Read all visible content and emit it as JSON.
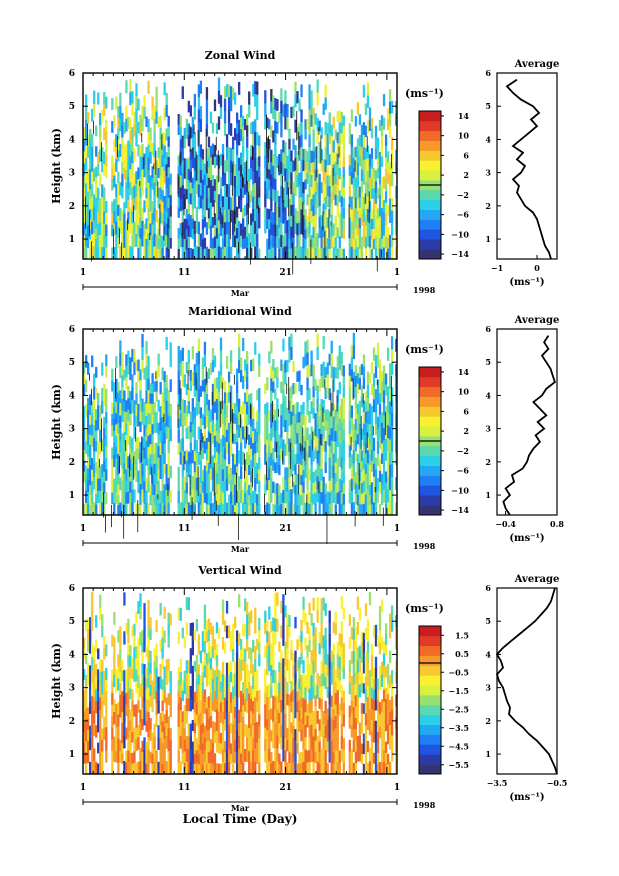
{
  "figure": {
    "xlabel": "Local Time (Day)",
    "profile_title": "Average"
  },
  "chart_data": [
    {
      "type": "heatmap",
      "name": "zonal",
      "title": "Zonal Wind",
      "ylabel": "Height (km)",
      "ylim": [
        0.4,
        6
      ],
      "yticks": [
        "1",
        "2",
        "3",
        "4",
        "5",
        "6"
      ],
      "xticks": [
        "1",
        "11",
        "21",
        "1"
      ],
      "month_label": "Mar",
      "year_label": "1998",
      "colorbar": {
        "unit": "(ms⁻¹)",
        "range": [
          -15,
          15
        ],
        "ticks": [
          "14",
          "10",
          "6",
          "2",
          "−2",
          "−6",
          "−10",
          "−14"
        ],
        "colors": [
          "#333470",
          "#2b3aa8",
          "#1f55e0",
          "#1e80f4",
          "#23a8f4",
          "#2bd0e8",
          "#5ad8b0",
          "#9ae070",
          "#d8f040",
          "#f8f030",
          "#f8c830",
          "#f89828",
          "#f06a28",
          "#e03a28",
          "#c81e20"
        ]
      },
      "profile": {
        "xlim": [
          -1,
          0.5
        ],
        "xticks": [
          "−1",
          "0"
        ],
        "xlabel": "(ms⁻¹)",
        "heights": [
          0.4,
          0.6,
          0.8,
          1.0,
          1.2,
          1.4,
          1.6,
          1.8,
          2.0,
          2.2,
          2.4,
          2.6,
          2.8,
          3.0,
          3.2,
          3.4,
          3.6,
          3.8,
          4.0,
          4.2,
          4.4,
          4.6,
          4.8,
          5.0,
          5.2,
          5.4,
          5.6,
          5.8
        ],
        "values": [
          0.35,
          0.3,
          0.2,
          0.15,
          0.1,
          0.05,
          0.0,
          -0.1,
          -0.3,
          -0.4,
          -0.5,
          -0.45,
          -0.6,
          -0.4,
          -0.3,
          -0.5,
          -0.35,
          -0.6,
          -0.4,
          -0.2,
          0.0,
          -0.15,
          0.05,
          -0.1,
          -0.4,
          -0.6,
          -0.75,
          -0.5
        ]
      }
    },
    {
      "type": "heatmap",
      "name": "meridional",
      "title": "Maridional Wind",
      "ylabel": "Height (km)",
      "ylim": [
        0.4,
        6
      ],
      "yticks": [
        "1",
        "2",
        "3",
        "4",
        "5",
        "6"
      ],
      "xticks": [
        "1",
        "11",
        "21",
        "1"
      ],
      "month_label": "Mar",
      "year_label": "1998",
      "colorbar": {
        "unit": "(ms⁻¹)",
        "range": [
          -15,
          15
        ],
        "ticks": [
          "14",
          "10",
          "6",
          "2",
          "−2",
          "−6",
          "−10",
          "−14"
        ],
        "colors": [
          "#333470",
          "#2b3aa8",
          "#1f55e0",
          "#1e80f4",
          "#23a8f4",
          "#2bd0e8",
          "#5ad8b0",
          "#9ae070",
          "#d8f040",
          "#f8f030",
          "#f8c830",
          "#f89828",
          "#f06a28",
          "#e03a28",
          "#c81e20"
        ]
      },
      "profile": {
        "xlim": [
          -0.6,
          0.8
        ],
        "xticks": [
          "−0.4",
          "0.8"
        ],
        "xlabel": "(ms⁻¹)",
        "heights": [
          0.4,
          0.6,
          0.8,
          1.0,
          1.2,
          1.4,
          1.6,
          1.8,
          2.0,
          2.2,
          2.4,
          2.6,
          2.8,
          3.0,
          3.2,
          3.4,
          3.6,
          3.8,
          4.0,
          4.2,
          4.4,
          4.6,
          4.8,
          5.0,
          5.2,
          5.4,
          5.6,
          5.8
        ],
        "values": [
          -0.3,
          -0.4,
          -0.45,
          -0.3,
          -0.4,
          -0.2,
          -0.25,
          0.0,
          0.1,
          0.15,
          0.25,
          0.4,
          0.3,
          0.5,
          0.35,
          0.55,
          0.4,
          0.25,
          0.45,
          0.55,
          0.75,
          0.7,
          0.65,
          0.55,
          0.45,
          0.6,
          0.5,
          0.6
        ]
      }
    },
    {
      "type": "heatmap",
      "name": "vertical",
      "title": "Vertical Wind",
      "ylabel": "Height (km)",
      "ylim": [
        0.4,
        6
      ],
      "yticks": [
        "1",
        "2",
        "3",
        "4",
        "5",
        "6"
      ],
      "xticks": [
        "1",
        "11",
        "21",
        "1"
      ],
      "month_label": "Mar",
      "year_label": "1998",
      "colorbar": {
        "unit": "(ms⁻¹)",
        "range": [
          -6,
          2
        ],
        "ticks": [
          "1.5",
          "0.5",
          "−0.5",
          "−1.5",
          "−2.5",
          "−3.5",
          "−4.5",
          "−5.5"
        ],
        "colors": [
          "#333470",
          "#2b3aa8",
          "#1f55e0",
          "#1e80f4",
          "#23a8f4",
          "#2bd0e8",
          "#5ad8b0",
          "#9ae070",
          "#d8f040",
          "#f8f030",
          "#f8c830",
          "#f89828",
          "#f06a28",
          "#e03a28",
          "#c81e20"
        ]
      },
      "profile": {
        "xlim": [
          -3.5,
          -0.5
        ],
        "xticks": [
          "−3.5",
          "−0.5"
        ],
        "xlabel": "(ms⁻¹)",
        "heights": [
          0.4,
          0.6,
          0.8,
          1.0,
          1.2,
          1.4,
          1.6,
          1.8,
          2.0,
          2.2,
          2.4,
          2.6,
          2.8,
          3.0,
          3.2,
          3.4,
          3.6,
          3.8,
          4.0,
          4.2,
          4.4,
          4.6,
          4.8,
          5.0,
          5.2,
          5.4,
          5.6,
          5.8,
          6.0
        ],
        "values": [
          -0.5,
          -0.6,
          -0.75,
          -0.9,
          -1.2,
          -1.5,
          -1.9,
          -2.2,
          -2.6,
          -2.9,
          -2.85,
          -3.0,
          -3.1,
          -3.2,
          -3.4,
          -3.5,
          -3.2,
          -3.3,
          -3.5,
          -3.2,
          -2.8,
          -2.4,
          -2.0,
          -1.6,
          -1.3,
          -1.0,
          -0.8,
          -0.7,
          -0.6
        ]
      }
    }
  ]
}
